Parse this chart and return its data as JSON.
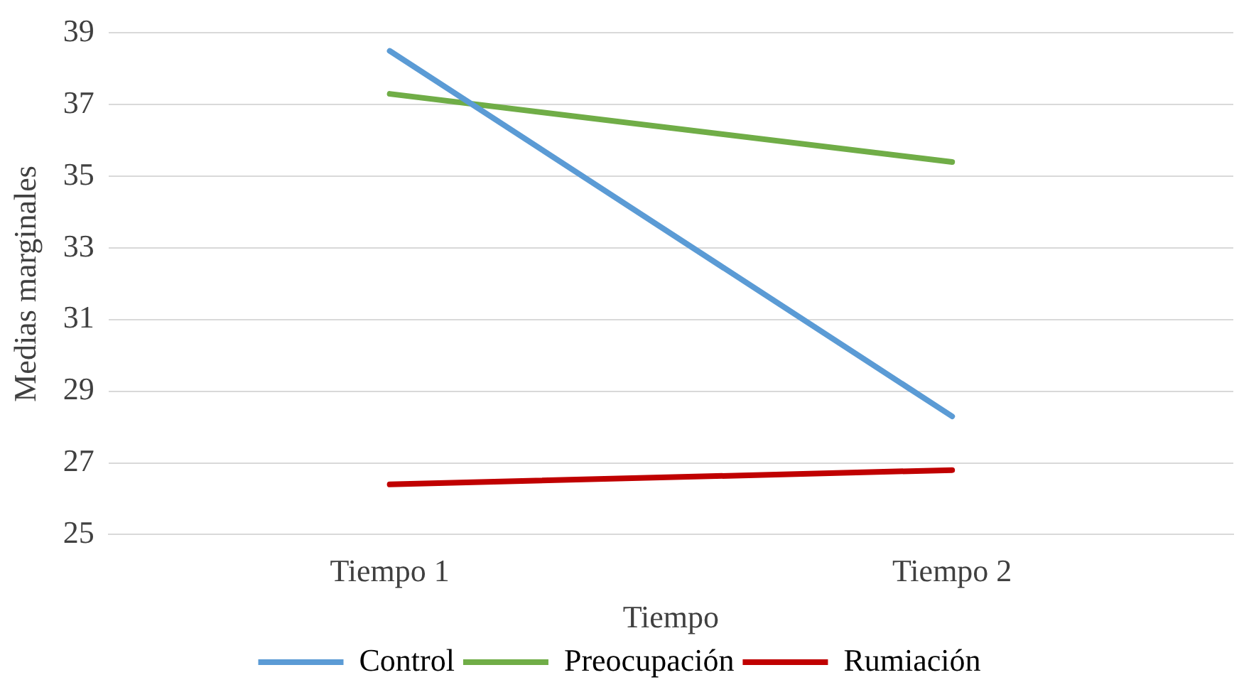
{
  "chart_data": {
    "type": "line",
    "xlabel": "Tiempo",
    "ylabel": "Medias marginales",
    "categories": [
      "Tiempo 1",
      "Tiempo 2"
    ],
    "series": [
      {
        "name": "Control",
        "color": "#5b9bd5",
        "values": [
          38.5,
          28.3
        ]
      },
      {
        "name": "Preocupación",
        "color": "#70ad47",
        "values": [
          37.3,
          35.4
        ]
      },
      {
        "name": "Rumiación",
        "color": "#c00000",
        "values": [
          26.4,
          26.8
        ]
      }
    ],
    "ylim": [
      25,
      39
    ],
    "yticks": [
      25,
      27,
      29,
      31,
      33,
      35,
      37,
      39
    ],
    "grid": "y",
    "legend": "bottom",
    "marker": "none",
    "line_style": "solid"
  }
}
